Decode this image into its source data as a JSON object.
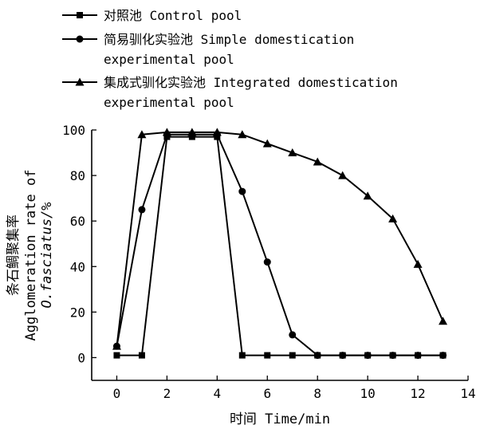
{
  "chart_data": {
    "type": "line",
    "title": "",
    "xlabel": "时间 Time/min",
    "ylabel_lines": [
      "条石鲷聚集率",
      "Agglomeration rate of",
      "O.fasciatus/%"
    ],
    "xlim": [
      -1,
      14
    ],
    "ylim": [
      -10,
      100
    ],
    "xticks": [
      0,
      2,
      4,
      6,
      8,
      10,
      12,
      14
    ],
    "yticks": [
      0,
      20,
      40,
      60,
      80,
      100
    ],
    "grid": false,
    "legend_position": "top-left",
    "series": [
      {
        "name_lines": [
          "对照池 Control pool"
        ],
        "marker": "square",
        "color": "#000000",
        "x": [
          0,
          1,
          2,
          3,
          4,
          5,
          6,
          7,
          8,
          9,
          10,
          11,
          12,
          13
        ],
        "y": [
          1,
          1,
          97,
          97,
          97,
          1,
          1,
          1,
          1,
          1,
          1,
          1,
          1,
          1
        ]
      },
      {
        "name_lines": [
          "简易驯化实验池 Simple domestication",
          "experimental pool"
        ],
        "marker": "circle",
        "color": "#000000",
        "x": [
          0,
          1,
          2,
          3,
          4,
          5,
          6,
          7,
          8,
          9,
          10,
          11,
          12,
          13
        ],
        "y": [
          5,
          65,
          98,
          98,
          98,
          73,
          42,
          10,
          1,
          1,
          1,
          1,
          1,
          1
        ]
      },
      {
        "name_lines": [
          "集成式驯化实验池 Integrated domestication",
          "experimental pool"
        ],
        "marker": "triangle",
        "color": "#000000",
        "x": [
          0,
          1,
          2,
          3,
          4,
          5,
          6,
          7,
          8,
          9,
          10,
          11,
          12,
          13
        ],
        "y": [
          5,
          98,
          99,
          99,
          99,
          98,
          94,
          90,
          86,
          80,
          71,
          61,
          41,
          16
        ]
      }
    ]
  }
}
